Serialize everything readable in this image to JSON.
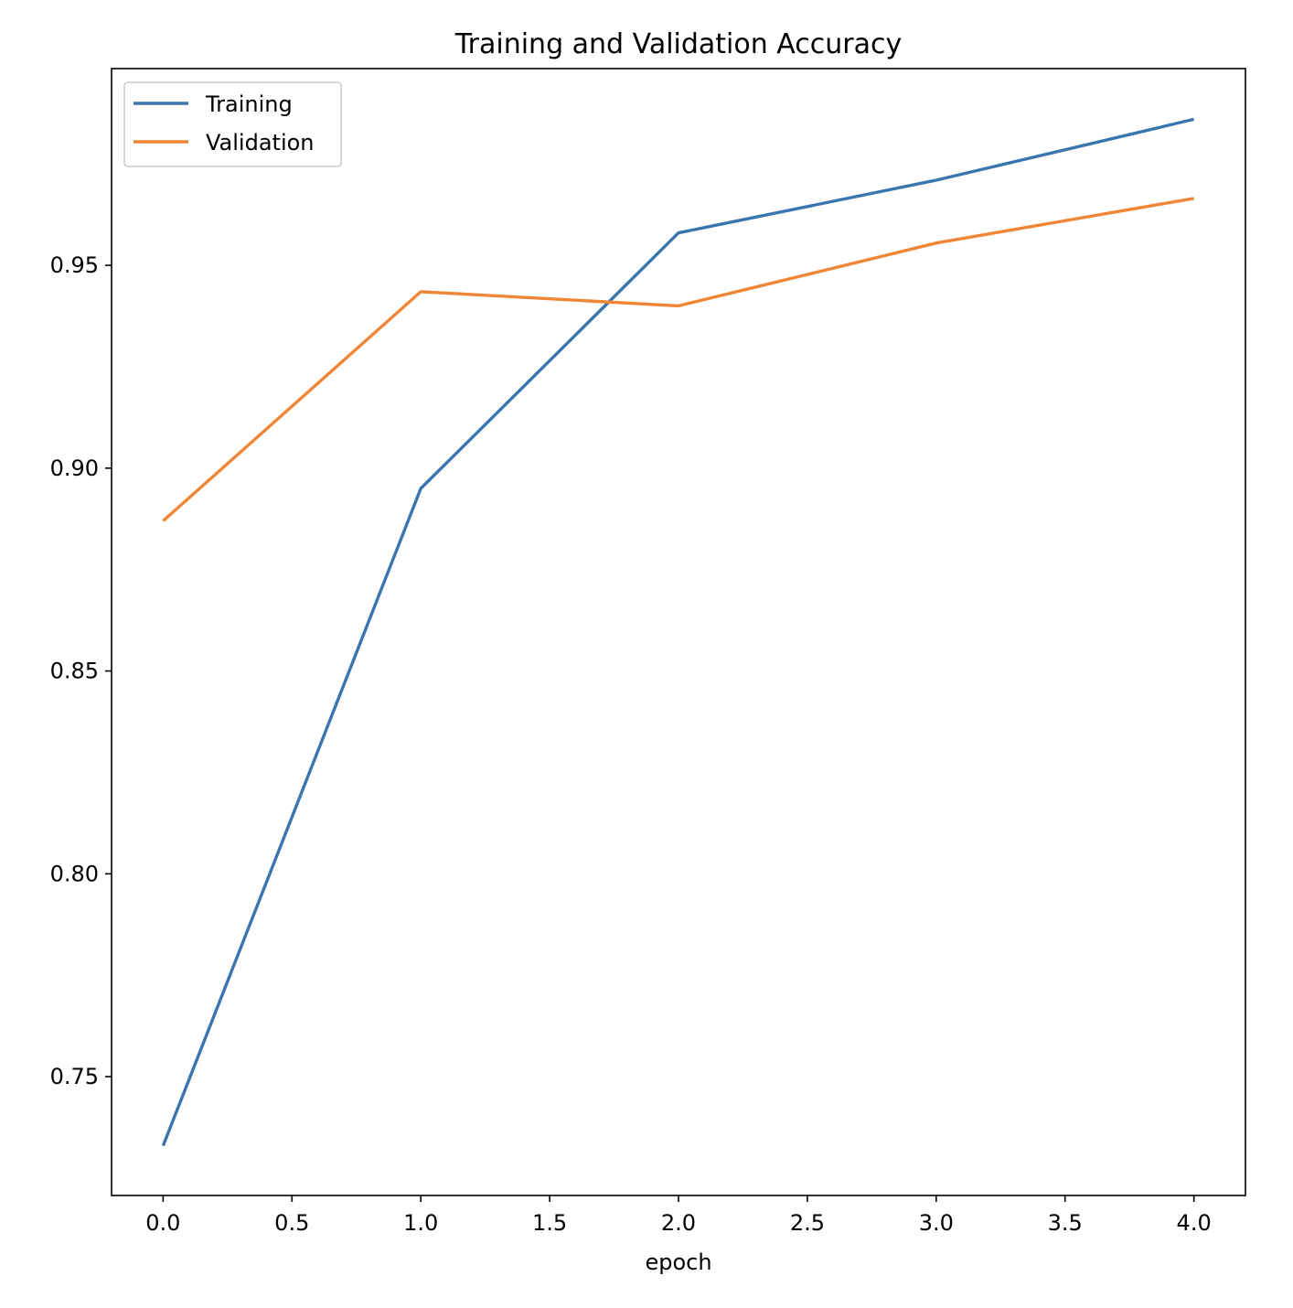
{
  "chart_data": {
    "type": "line",
    "title": "Training and Validation Accuracy",
    "xlabel": "epoch",
    "ylabel": "",
    "xlim": [
      -0.2,
      4.2
    ],
    "ylim": [
      0.7207,
      0.9985
    ],
    "x": [
      0,
      1,
      2,
      3,
      4
    ],
    "xticks": [
      0.0,
      0.5,
      1.0,
      1.5,
      2.0,
      2.5,
      3.0,
      3.5,
      4.0
    ],
    "xtick_labels": [
      "0.0",
      "0.5",
      "1.0",
      "1.5",
      "2.0",
      "2.5",
      "3.0",
      "3.5",
      "4.0"
    ],
    "yticks": [
      0.75,
      0.8,
      0.85,
      0.9,
      0.95
    ],
    "ytick_labels": [
      "0.75",
      "0.80",
      "0.85",
      "0.90",
      "0.95"
    ],
    "grid": false,
    "legend_position": "top-left",
    "series": [
      {
        "name": "Training",
        "color": "#3b75af",
        "values": [
          0.733,
          0.895,
          0.958,
          0.971,
          0.986
        ]
      },
      {
        "name": "Validation",
        "color": "#ef8636",
        "values": [
          0.887,
          0.9435,
          0.94,
          0.9555,
          0.9665
        ]
      }
    ]
  }
}
